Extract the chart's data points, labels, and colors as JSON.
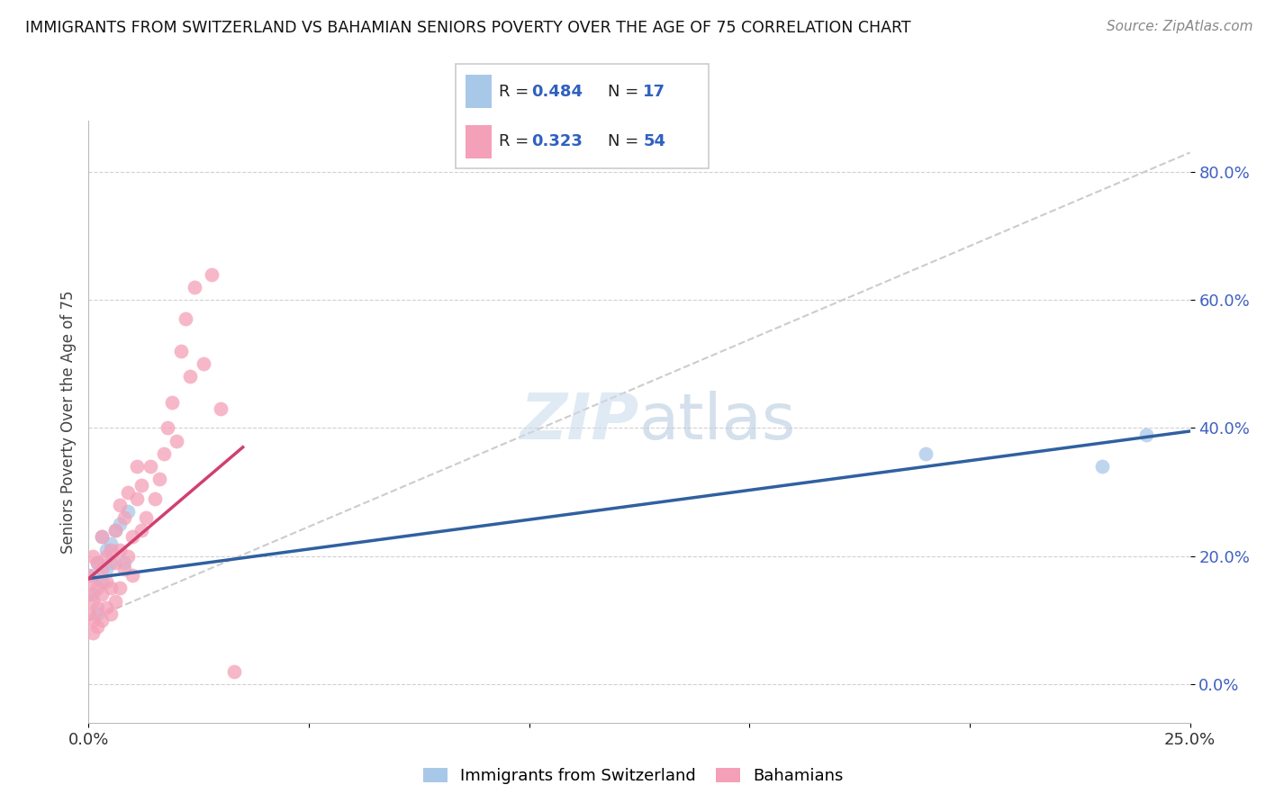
{
  "title": "IMMIGRANTS FROM SWITZERLAND VS BAHAMIAN SENIORS POVERTY OVER THE AGE OF 75 CORRELATION CHART",
  "source": "Source: ZipAtlas.com",
  "ylabel": "Seniors Poverty Over the Age of 75",
  "xlim": [
    0.0,
    0.25
  ],
  "ylim": [
    -0.06,
    0.88
  ],
  "ytick_values": [
    0.0,
    0.2,
    0.4,
    0.6,
    0.8
  ],
  "xtick_values": [
    0.0,
    0.05,
    0.1,
    0.15,
    0.2,
    0.25
  ],
  "legend_labels": [
    "Immigrants from Switzerland",
    "Bahamians"
  ],
  "blue_R": 0.484,
  "blue_N": 17,
  "pink_R": 0.323,
  "pink_N": 54,
  "blue_color": "#a8c8e8",
  "pink_color": "#f4a0b8",
  "blue_line_color": "#3060a0",
  "pink_line_color": "#d04070",
  "blue_scatter_x": [
    0.001,
    0.001,
    0.002,
    0.002,
    0.003,
    0.003,
    0.004,
    0.004,
    0.005,
    0.005,
    0.006,
    0.007,
    0.008,
    0.009,
    0.19,
    0.23,
    0.24
  ],
  "blue_scatter_y": [
    0.14,
    0.17,
    0.11,
    0.19,
    0.16,
    0.23,
    0.21,
    0.18,
    0.19,
    0.22,
    0.24,
    0.25,
    0.19,
    0.27,
    0.36,
    0.34,
    0.39
  ],
  "pink_scatter_x": [
    0.0,
    0.0,
    0.0,
    0.001,
    0.001,
    0.001,
    0.001,
    0.001,
    0.002,
    0.002,
    0.002,
    0.002,
    0.003,
    0.003,
    0.003,
    0.003,
    0.004,
    0.004,
    0.004,
    0.005,
    0.005,
    0.005,
    0.006,
    0.006,
    0.006,
    0.007,
    0.007,
    0.007,
    0.008,
    0.008,
    0.009,
    0.009,
    0.01,
    0.01,
    0.011,
    0.011,
    0.012,
    0.012,
    0.013,
    0.014,
    0.015,
    0.016,
    0.017,
    0.018,
    0.019,
    0.02,
    0.021,
    0.022,
    0.023,
    0.024,
    0.026,
    0.028,
    0.03,
    0.033
  ],
  "pink_scatter_y": [
    0.11,
    0.14,
    0.17,
    0.08,
    0.1,
    0.13,
    0.16,
    0.2,
    0.09,
    0.12,
    0.15,
    0.19,
    0.1,
    0.14,
    0.18,
    0.23,
    0.12,
    0.16,
    0.2,
    0.11,
    0.15,
    0.21,
    0.13,
    0.19,
    0.24,
    0.15,
    0.21,
    0.28,
    0.18,
    0.26,
    0.2,
    0.3,
    0.17,
    0.23,
    0.29,
    0.34,
    0.24,
    0.31,
    0.26,
    0.34,
    0.29,
    0.32,
    0.36,
    0.4,
    0.44,
    0.38,
    0.52,
    0.57,
    0.48,
    0.62,
    0.5,
    0.64,
    0.43,
    0.02
  ],
  "blue_line_x": [
    0.0,
    0.25
  ],
  "blue_line_y": [
    0.165,
    0.395
  ],
  "pink_line_x": [
    0.0,
    0.035
  ],
  "pink_line_y": [
    0.165,
    0.37
  ],
  "diag_line_x": [
    0.0,
    0.25
  ],
  "diag_line_y": [
    0.1,
    0.83
  ]
}
